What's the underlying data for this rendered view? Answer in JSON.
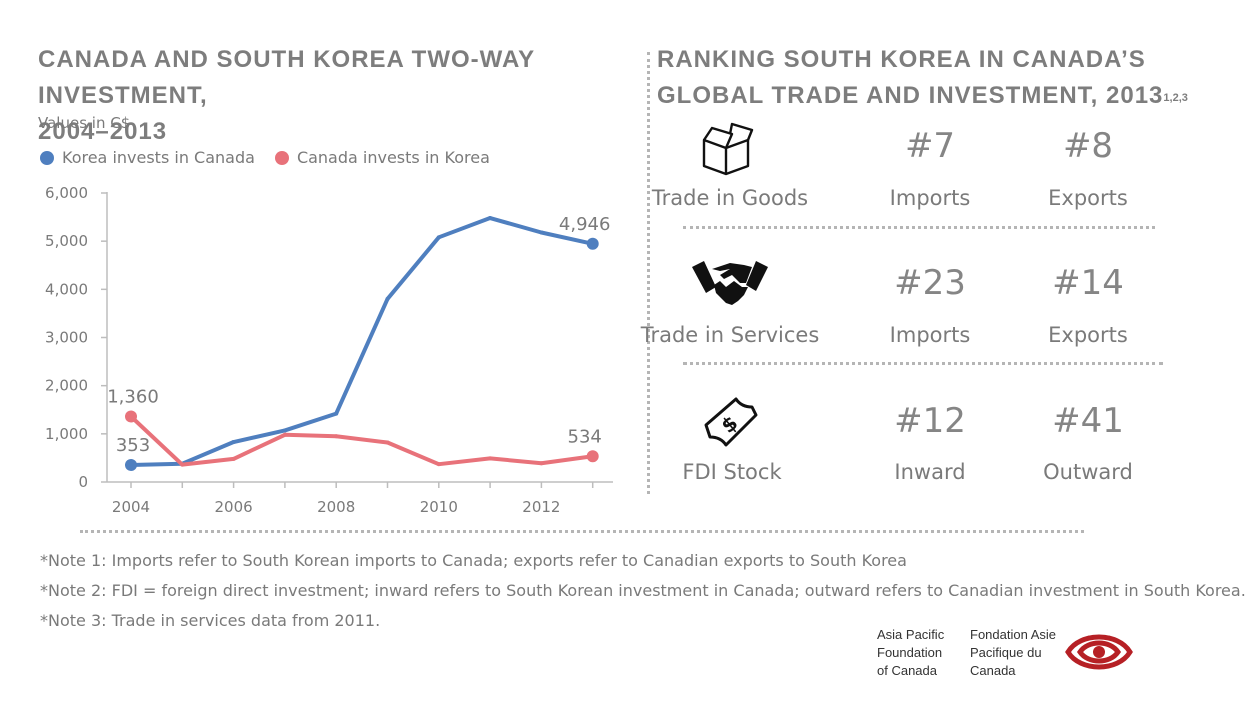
{
  "left_title_line1": "Canada and South Korea two-way investment,",
  "left_title_line2": "2004–2013",
  "subtitle": "Values in C$",
  "right_title_line1": "Ranking South Korea in Canada’s",
  "right_title_line2": "global trade and investment, 2013",
  "right_title_sup": "1,2,3",
  "colors": {
    "korea": "#4f7fbf",
    "canada": "#e8727a",
    "text": "#7a7a7a",
    "logo": "#b62025"
  },
  "chart_data": {
    "type": "line",
    "title": "Canada and South Korea two-way investment, 2004–2013",
    "ylabel": "Values in C$",
    "x": [
      2004,
      2005,
      2006,
      2007,
      2008,
      2009,
      2010,
      2011,
      2012,
      2013
    ],
    "xticks": [
      "2004",
      "2006",
      "2008",
      "2010",
      "2012"
    ],
    "yticks": [
      "0",
      "1,000",
      "2,000",
      "3,000",
      "4,000",
      "5,000",
      "6,000"
    ],
    "ylim": [
      0,
      6000
    ],
    "legend": "top-left",
    "series": [
      {
        "name": "Korea invests in Canada",
        "color": "#4f7fbf",
        "values": [
          353,
          380,
          830,
          1070,
          1420,
          3800,
          5080,
          5480,
          5180,
          4946
        ],
        "labels": {
          "0": "353",
          "9": "4,946"
        }
      },
      {
        "name": "Canada invests in Korea",
        "color": "#e8727a",
        "values": [
          1360,
          360,
          480,
          980,
          950,
          820,
          370,
          490,
          390,
          534
        ],
        "labels": {
          "0": "1,360",
          "9": "534"
        }
      }
    ]
  },
  "rankings": [
    {
      "category": "Trade in Goods",
      "icon": "box-icon",
      "first_rank": "#7",
      "first_label": "Imports",
      "second_rank": "#8",
      "second_label": "Exports"
    },
    {
      "category": "Trade in Services",
      "icon": "handshake-icon",
      "first_rank": "#23",
      "first_label": "Imports",
      "second_rank": "#14",
      "second_label": "Exports"
    },
    {
      "category": "FDI Stock",
      "icon": "money-icon",
      "first_rank": "#12",
      "first_label": "Inward",
      "second_rank": "#41",
      "second_label": "Outward"
    }
  ],
  "notes": [
    "*Note 1: Imports refer to South Korean imports to Canada; exports refer to Canadian exports to South Korea",
    "*Note 2: FDI = foreign direct investment; inward refers to South Korean investment in Canada; outward refers to Canadian investment in South Korea.",
    "*Note 3: Trade in services data from 2011."
  ],
  "org_en": [
    "Asia Pacific",
    "Foundation",
    "of Canada"
  ],
  "org_fr": [
    "Fondation Asie",
    "Pacifique du",
    "Canada"
  ]
}
